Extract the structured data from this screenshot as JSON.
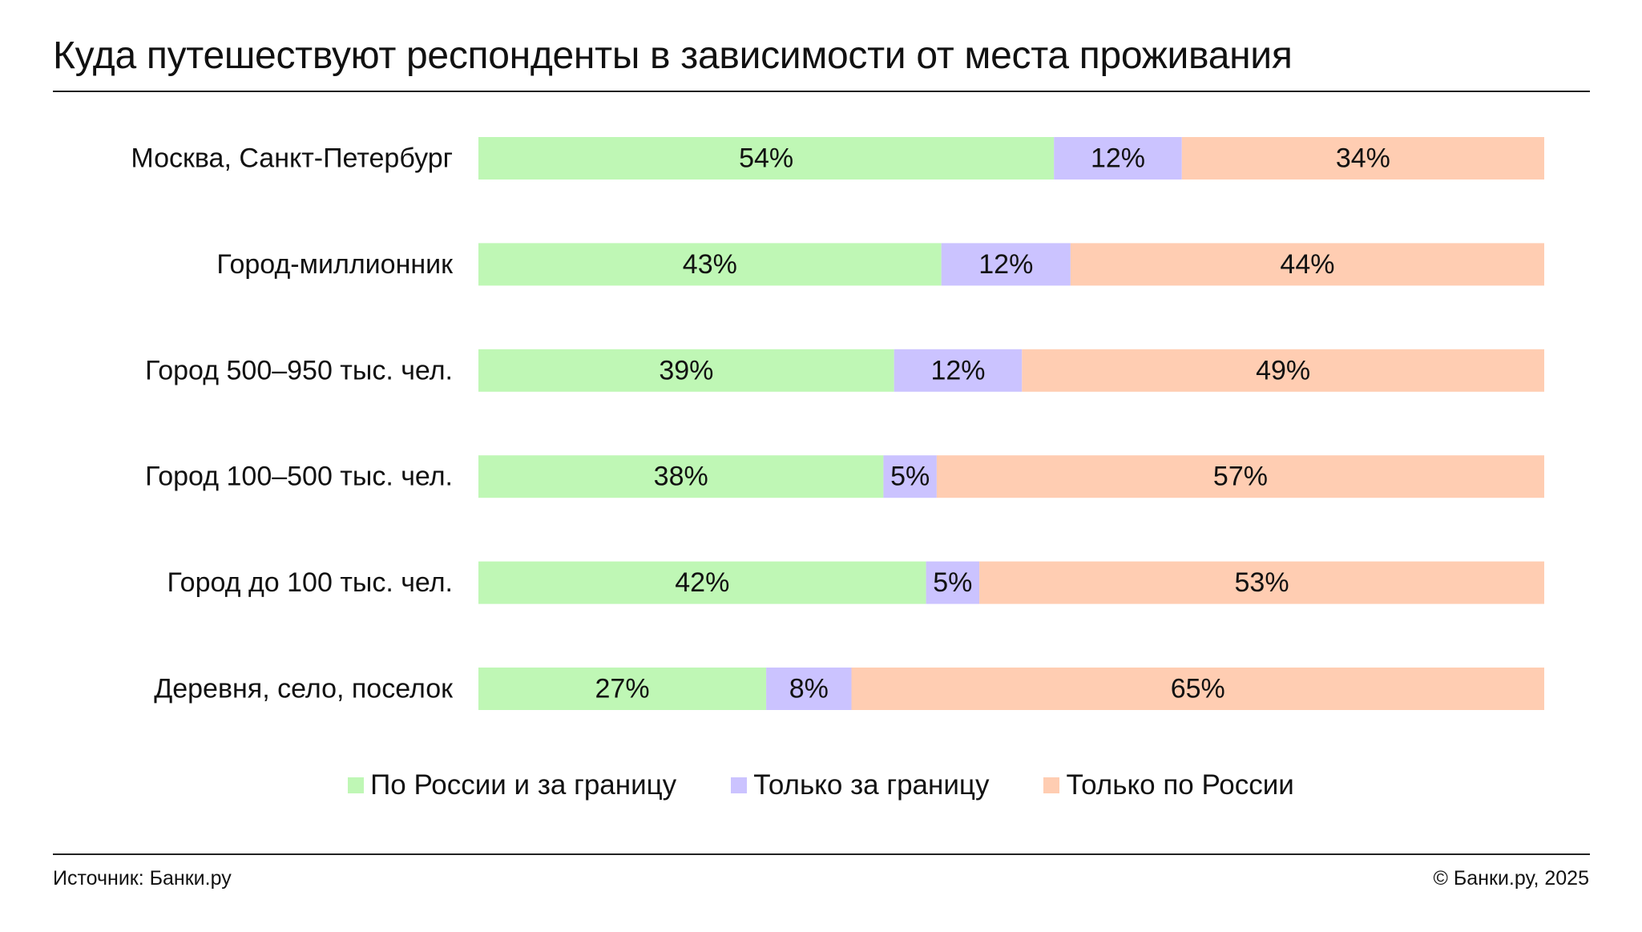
{
  "title": "Куда путешествуют респонденты в зависимости от места проживания",
  "legend": [
    {
      "label": "По России и за границу",
      "color": "#bff7b5"
    },
    {
      "label": "Только за границу",
      "color": "#cbc3ff"
    },
    {
      "label": "Только по России",
      "color": "#ffcdb2"
    }
  ],
  "footer": {
    "source": "Источник: Банки.ру",
    "copyright": "© Банки.ру, 2025"
  },
  "chart_data": {
    "type": "bar",
    "orientation": "horizontal",
    "stacked": true,
    "categories": [
      "Москва, Санкт-Петербург",
      "Город-миллионник",
      "Город 500–950 тыс. чел.",
      "Город 100–500 тыс. чел.",
      "Город до 100 тыс. чел.",
      "Деревня, село, поселок"
    ],
    "series": [
      {
        "name": "По России и за границу",
        "color": "#bff7b5",
        "values": [
          54,
          43,
          39,
          38,
          42,
          27
        ]
      },
      {
        "name": "Только за границу",
        "color": "#cbc3ff",
        "values": [
          12,
          12,
          12,
          5,
          5,
          8
        ]
      },
      {
        "name": "Только по России",
        "color": "#ffcdb2",
        "values": [
          34,
          44,
          49,
          57,
          53,
          65
        ]
      }
    ],
    "data_labels": [
      [
        "54%",
        "12%",
        "34%"
      ],
      [
        "43%",
        "12%",
        "44%"
      ],
      [
        "39%",
        "12%",
        "49%"
      ],
      [
        "38%",
        "5%",
        "57%"
      ],
      [
        "42%",
        "5%",
        "53%"
      ],
      [
        "27%",
        "8%",
        "65%"
      ]
    ],
    "xlim": [
      0,
      100
    ],
    "grid": false,
    "legend_position": "bottom-center"
  }
}
